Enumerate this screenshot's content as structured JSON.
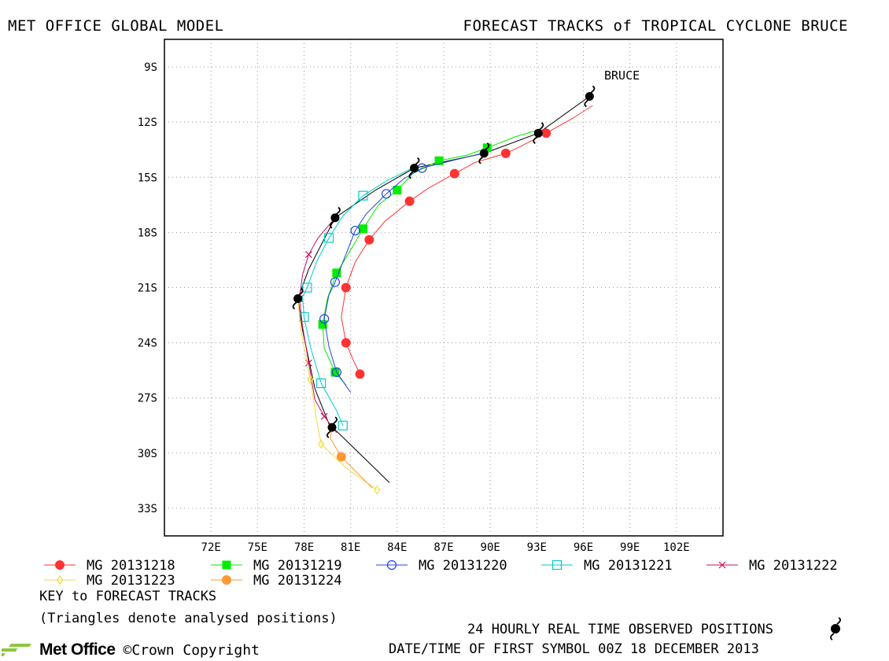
{
  "header": {
    "left": "MET OFFICE GLOBAL MODEL",
    "right": "FORECAST TRACKS of TROPICAL CYCLONE BRUCE"
  },
  "chart_data": {
    "type": "line",
    "title": "FORECAST TRACKS of TROPICAL CYCLONE BRUCE",
    "xlim": [
      69,
      105
    ],
    "ylim": [
      -34.5,
      -7.5
    ],
    "x_ticks": [
      72,
      75,
      78,
      81,
      84,
      87,
      90,
      93,
      96,
      99,
      102
    ],
    "x_tick_labels": [
      "72E",
      "75E",
      "78E",
      "81E",
      "84E",
      "87E",
      "90E",
      "93E",
      "96E",
      "99E",
      "102E"
    ],
    "y_ticks": [
      -9,
      -12,
      -15,
      -18,
      -21,
      -24,
      -27,
      -30,
      -33
    ],
    "y_tick_labels": [
      "9S",
      "12S",
      "15S",
      "18S",
      "21S",
      "24S",
      "27S",
      "30S",
      "33S"
    ],
    "grid": true,
    "storm_label": "BRUCE",
    "observed_track": {
      "name": "24 HOURLY REAL TIME OBSERVED POSITIONS",
      "points": [
        [
          96.4,
          -10.6
        ],
        [
          93.1,
          -12.6
        ],
        [
          89.6,
          -13.7
        ],
        [
          85.1,
          -14.5
        ],
        [
          80.0,
          -17.2
        ],
        [
          77.6,
          -21.6
        ],
        [
          79.8,
          -28.6
        ]
      ]
    },
    "series": [
      {
        "name": "MG 20131218",
        "color": "#ff3333",
        "marker": "circle-filled",
        "points": [
          [
            96.6,
            -11.1
          ],
          [
            95.3,
            -11.8
          ],
          [
            93.6,
            -12.6
          ],
          [
            92.0,
            -13.3
          ],
          [
            91.0,
            -13.7
          ],
          [
            89.0,
            -14.2
          ],
          [
            87.7,
            -14.8
          ],
          [
            86.0,
            -15.6
          ],
          [
            84.8,
            -16.3
          ],
          [
            83.2,
            -17.4
          ],
          [
            82.2,
            -18.4
          ],
          [
            81.3,
            -19.6
          ],
          [
            80.7,
            -21.0
          ],
          [
            80.4,
            -22.6
          ],
          [
            80.7,
            -24.0
          ],
          [
            81.2,
            -25.0
          ],
          [
            81.6,
            -25.7
          ]
        ]
      },
      {
        "name": "MG 20131219",
        "color": "#00ee00",
        "marker": "square-filled",
        "points": [
          [
            93.2,
            -12.4
          ],
          [
            91.6,
            -12.8
          ],
          [
            89.8,
            -13.4
          ],
          [
            88.5,
            -13.8
          ],
          [
            86.7,
            -14.1
          ],
          [
            85.0,
            -14.8
          ],
          [
            84.0,
            -15.7
          ],
          [
            82.8,
            -16.5
          ],
          [
            81.8,
            -17.8
          ],
          [
            80.9,
            -19.1
          ],
          [
            80.1,
            -20.2
          ],
          [
            79.5,
            -21.6
          ],
          [
            79.2,
            -23.0
          ],
          [
            79.3,
            -24.3
          ],
          [
            80.0,
            -25.6
          ],
          [
            80.7,
            -26.3
          ]
        ]
      },
      {
        "name": "MG 20131220",
        "color": "#2244dd",
        "marker": "circle-open",
        "points": [
          [
            89.5,
            -13.7
          ],
          [
            87.5,
            -14.1
          ],
          [
            85.6,
            -14.5
          ],
          [
            84.4,
            -15.1
          ],
          [
            83.3,
            -15.9
          ],
          [
            82.0,
            -17.0
          ],
          [
            81.3,
            -17.9
          ],
          [
            80.6,
            -19.4
          ],
          [
            80.0,
            -20.7
          ],
          [
            79.6,
            -21.4
          ],
          [
            79.3,
            -22.7
          ],
          [
            79.6,
            -24.2
          ],
          [
            80.1,
            -25.6
          ],
          [
            81.0,
            -26.7
          ]
        ]
      },
      {
        "name": "MG 20131221",
        "color": "#00cccc",
        "marker": "square-open",
        "points": [
          [
            85.0,
            -14.5
          ],
          [
            83.3,
            -15.2
          ],
          [
            81.8,
            -16.0
          ],
          [
            80.5,
            -17.1
          ],
          [
            79.6,
            -18.3
          ],
          [
            78.8,
            -19.6
          ],
          [
            78.2,
            -21.0
          ],
          [
            77.9,
            -21.5
          ],
          [
            78.0,
            -22.6
          ],
          [
            78.4,
            -24.2
          ],
          [
            79.1,
            -26.2
          ],
          [
            80.1,
            -27.7
          ],
          [
            80.5,
            -28.5
          ]
        ]
      },
      {
        "name": "MG 20131222",
        "color": "#cc1166",
        "marker": "cross",
        "points": [
          [
            80.0,
            -17.2
          ],
          [
            78.9,
            -18.3
          ],
          [
            78.3,
            -19.2
          ],
          [
            77.9,
            -20.3
          ],
          [
            77.7,
            -21.6
          ],
          [
            77.9,
            -23.1
          ],
          [
            78.3,
            -25.1
          ],
          [
            78.7,
            -27.1
          ],
          [
            79.3,
            -28.0
          ],
          [
            80.1,
            -28.9
          ]
        ]
      },
      {
        "name": "MG 20131223",
        "color": "#eedd44",
        "marker": "diamond-open",
        "points": [
          [
            77.6,
            -21.6
          ],
          [
            77.8,
            -23.3
          ],
          [
            78.4,
            -26.0
          ],
          [
            78.8,
            -28.2
          ],
          [
            79.1,
            -29.5
          ],
          [
            80.7,
            -30.8
          ],
          [
            82.7,
            -32.0
          ]
        ]
      },
      {
        "name": "MG 20131224",
        "color": "#ff9933",
        "marker": "circle-filled",
        "points": [
          [
            79.8,
            -28.6
          ],
          [
            79.7,
            -29.2
          ],
          [
            80.4,
            -30.2
          ],
          [
            82.4,
            -31.9
          ]
        ]
      }
    ],
    "observed_line": {
      "color": "#000000",
      "points": [
        [
          96.4,
          -10.6
        ],
        [
          93.1,
          -12.6
        ],
        [
          89.6,
          -13.7
        ],
        [
          85.1,
          -14.5
        ],
        [
          82.6,
          -15.7
        ],
        [
          80.0,
          -17.2
        ],
        [
          78.3,
          -20.0
        ],
        [
          77.6,
          -21.6
        ],
        [
          77.9,
          -23.3
        ],
        [
          78.7,
          -26.5
        ],
        [
          79.6,
          -28.4
        ],
        [
          80.7,
          -29.3
        ],
        [
          83.5,
          -31.6
        ]
      ]
    }
  },
  "legend": {
    "title": "KEY to FORECAST TRACKS",
    "note": "(Triangles denote analysed positions)",
    "entries": [
      "MG 20131218",
      "MG 20131219",
      "MG 20131220",
      "MG 20131221",
      "MG 20131222",
      "MG 20131223",
      "MG 20131224"
    ]
  },
  "footer": {
    "observed_label": "24 HOURLY REAL TIME OBSERVED POSITIONS",
    "datetime_label": "DATE/TIME OF FIRST SYMBOL 00Z 18 DECEMBER 2013",
    "logo_text": "Met Office",
    "copyright": "©Crown Copyright"
  }
}
